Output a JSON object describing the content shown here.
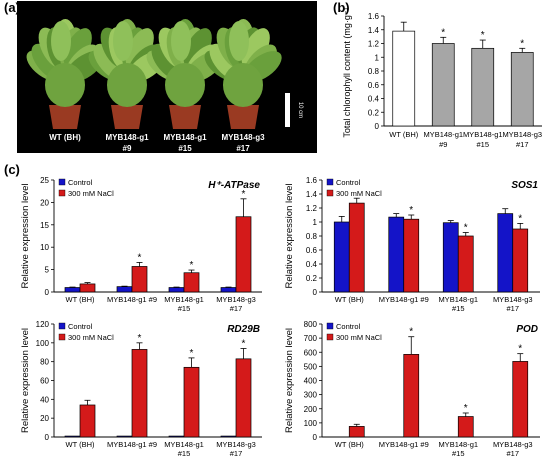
{
  "panels": {
    "a": "(a)",
    "b": "(b)",
    "c": "(c)"
  },
  "photo": {
    "plants": [
      {
        "line1": "WT (BH)",
        "line2": ""
      },
      {
        "line1": "MYB148-g1",
        "line2": "#9"
      },
      {
        "line1": "MYB148-g1",
        "line2": "#15"
      },
      {
        "line1": "MYB148-g3",
        "line2": "#17"
      }
    ],
    "scale_label": "10 cm"
  },
  "colors": {
    "control": "#1414c8",
    "nacl": "#d41a1a",
    "wt_bar": "#ffffff",
    "transgenic_bar": "#a6a6a6",
    "gene_label_accent": "#8b1a50"
  },
  "chart_data": [
    {
      "id": "b",
      "type": "bar",
      "categories": [
        {
          "line1": "WT (BH)",
          "line2": ""
        },
        {
          "line1": "MYB148-g1",
          "line2": "#9"
        },
        {
          "line1": "MYB148-g1",
          "line2": "#15"
        },
        {
          "line1": "MYB148-g3",
          "line2": "#17"
        }
      ],
      "values": [
        1.38,
        1.2,
        1.13,
        1.07
      ],
      "errors": [
        0.13,
        0.09,
        0.12,
        0.06
      ],
      "significant": [
        false,
        true,
        true,
        true
      ],
      "ylabel": "Total chlorophyll content (mg·g⁻¹)",
      "ylim": [
        0,
        1.6
      ],
      "yticks": [
        0,
        0.2,
        0.4,
        0.6,
        0.8,
        1.0,
        1.2,
        1.4,
        1.6
      ],
      "ytick_labels": [
        "0",
        "0.2",
        "0.4",
        "0.6",
        "0.8",
        "1",
        "1.2",
        "1.4",
        "1.6"
      ]
    },
    {
      "id": "hatpase",
      "type": "bar",
      "title": "H⁺-ATPase",
      "categories": [
        {
          "line1": "WT (BH)",
          "line2": ""
        },
        {
          "line1": "MYB148-g1 #9",
          "line2": ""
        },
        {
          "line1": "MYB148-g1",
          "line2": "#15"
        },
        {
          "line1": "MYB148-g3",
          "line2": "#17"
        }
      ],
      "series": [
        {
          "name": "Control",
          "values": [
            1.0,
            1.2,
            1.0,
            1.0
          ],
          "errors": [
            0.1,
            0.1,
            0.1,
            0.1
          ],
          "significant": [
            false,
            false,
            false,
            false
          ]
        },
        {
          "name": "300 mM NaCl",
          "values": [
            1.8,
            5.7,
            4.3,
            16.8
          ],
          "errors": [
            0.3,
            0.9,
            0.6,
            4.0
          ],
          "significant": [
            false,
            true,
            true,
            true
          ]
        }
      ],
      "ylabel": "Relative expression level",
      "ylim": [
        0,
        25
      ],
      "yticks": [
        0,
        5,
        10,
        15,
        20,
        25
      ]
    },
    {
      "id": "sos1",
      "type": "bar",
      "title": "SOS1",
      "categories": [
        {
          "line1": "WT (BH)",
          "line2": ""
        },
        {
          "line1": "MYB148-g1 #9",
          "line2": ""
        },
        {
          "line1": "MYB148-g1",
          "line2": "#15"
        },
        {
          "line1": "MYB148-g3",
          "line2": "#17"
        }
      ],
      "series": [
        {
          "name": "Control",
          "values": [
            1.0,
            1.07,
            0.99,
            1.12
          ],
          "errors": [
            0.08,
            0.05,
            0.03,
            0.07
          ],
          "significant": [
            false,
            false,
            false,
            false
          ]
        },
        {
          "name": "300 mM NaCl",
          "values": [
            1.27,
            1.04,
            0.8,
            0.9
          ],
          "errors": [
            0.07,
            0.06,
            0.05,
            0.08
          ],
          "significant": [
            false,
            true,
            true,
            true
          ]
        }
      ],
      "ylabel": "Relative expression level",
      "ylim": [
        0,
        1.6
      ],
      "yticks": [
        0,
        0.2,
        0.4,
        0.6,
        0.8,
        1.0,
        1.2,
        1.4,
        1.6
      ],
      "ytick_labels": [
        "0",
        "0.2",
        "0.4",
        "0.6",
        "0.8",
        "1",
        "1.2",
        "1.4",
        "1.6"
      ]
    },
    {
      "id": "rd29b",
      "type": "bar",
      "title": "RD29B",
      "categories": [
        {
          "line1": "WT (BH)",
          "line2": ""
        },
        {
          "line1": "MYB148-g1 #9",
          "line2": ""
        },
        {
          "line1": "MYB148-g1",
          "line2": "#15"
        },
        {
          "line1": "MYB148-g3",
          "line2": "#17"
        }
      ],
      "series": [
        {
          "name": "Control",
          "values": [
            1,
            1,
            1,
            1
          ],
          "errors": [
            0,
            0,
            0,
            0
          ],
          "significant": [
            false,
            false,
            false,
            false
          ]
        },
        {
          "name": "300 mM NaCl",
          "values": [
            34,
            93,
            74,
            83
          ],
          "errors": [
            5,
            7,
            10,
            11
          ],
          "significant": [
            false,
            true,
            true,
            true
          ]
        }
      ],
      "ylabel": "Relative expression level",
      "ylim": [
        0,
        120
      ],
      "yticks": [
        0,
        20,
        40,
        60,
        80,
        100,
        120
      ]
    },
    {
      "id": "pod",
      "type": "bar",
      "title": "POD",
      "categories": [
        {
          "line1": "WT (BH)",
          "line2": ""
        },
        {
          "line1": "MYB148-g1 #9",
          "line2": ""
        },
        {
          "line1": "MYB148-g1",
          "line2": "#15"
        },
        {
          "line1": "MYB148-g3",
          "line2": "#17"
        }
      ],
      "series": [
        {
          "name": "Control",
          "values": [
            1,
            1,
            1,
            1
          ],
          "errors": [
            0,
            0,
            0,
            0
          ],
          "significant": [
            false,
            false,
            false,
            false
          ]
        },
        {
          "name": "300 mM NaCl",
          "values": [
            75,
            585,
            145,
            535
          ],
          "errors": [
            15,
            125,
            25,
            55
          ],
          "significant": [
            false,
            true,
            true,
            true
          ]
        }
      ],
      "ylabel": "Relative expression level",
      "ylim": [
        0,
        800
      ],
      "yticks": [
        0,
        100,
        200,
        300,
        400,
        500,
        600,
        700,
        800
      ]
    }
  ]
}
